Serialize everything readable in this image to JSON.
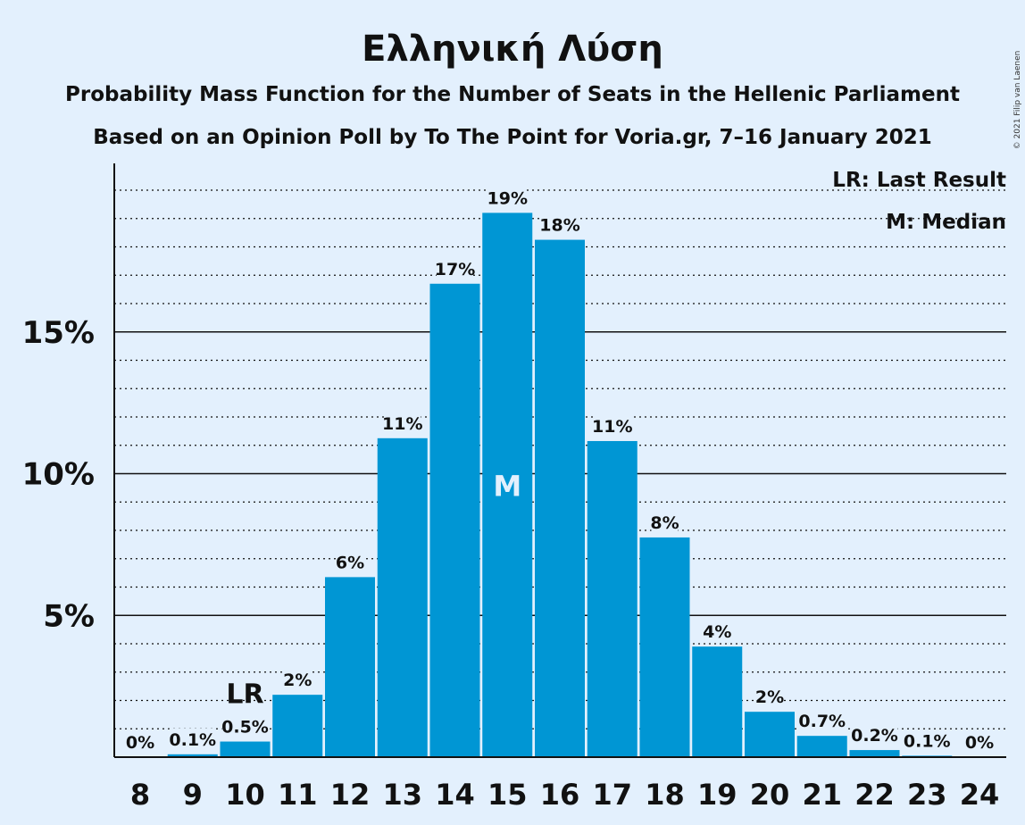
{
  "chart_data": {
    "type": "bar",
    "title": "Ελληνική Λύση",
    "subtitle": "Probability Mass Function for the Number of Seats in the Hellenic Parliament",
    "subtitle2": "Based on an Opinion Poll by To The Point for Voria.gr, 7–16 January 2021",
    "copyright": "© 2021 Filip van Laenen",
    "legend": [
      "LR: Last Result",
      "M: Median"
    ],
    "legend_position": "top-right",
    "xlabel": "",
    "ylabel": "",
    "categories": [
      8,
      9,
      10,
      11,
      12,
      13,
      14,
      15,
      16,
      17,
      18,
      19,
      20,
      21,
      22,
      23,
      24
    ],
    "values": [
      0,
      0.1,
      0.55,
      2.2,
      6.35,
      11.25,
      16.7,
      19.2,
      18.25,
      11.15,
      7.75,
      3.9,
      1.6,
      0.75,
      0.25,
      0.05,
      0
    ],
    "labels": [
      "0%",
      "0.1%",
      "0.5%",
      "2%",
      "6%",
      "11%",
      "17%",
      "19%",
      "18%",
      "11%",
      "8%",
      "4%",
      "2%",
      "0.7%",
      "0.2%",
      "0.1%",
      "0%"
    ],
    "yticks": [
      {
        "value": 5,
        "label": "5%"
      },
      {
        "value": 10,
        "label": "10%"
      },
      {
        "value": 15,
        "label": "15%"
      }
    ],
    "ylim": [
      0,
      21
    ],
    "grid": "major solid, minor dotted every 1%",
    "last_result": {
      "seat": 10,
      "label": "LR"
    },
    "median": {
      "seat": 15,
      "label": "M"
    },
    "bar_color": "#0096d4",
    "median_text_color": "#e3f0fd"
  }
}
